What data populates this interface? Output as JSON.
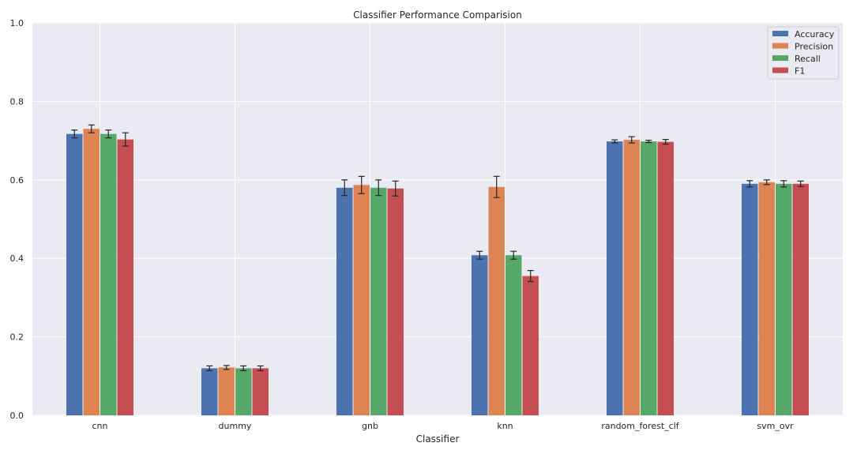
{
  "chart_data": {
    "type": "bar",
    "title": "Classifier Performance Comparision",
    "xlabel": "Classifier",
    "ylabel": "",
    "ylim": [
      0,
      1.0
    ],
    "yticks": [
      0.0,
      0.2,
      0.4,
      0.6,
      0.8,
      1.0
    ],
    "ytick_labels": [
      "0.0",
      "0.2",
      "0.4",
      "0.6",
      "0.8",
      "1.0"
    ],
    "grid": true,
    "legend_position": "top-right",
    "categories": [
      "cnn",
      "dummy",
      "gnb",
      "knn",
      "random_forest_clf",
      "svm_ovr"
    ],
    "series": [
      {
        "name": "Accuracy",
        "color": "#4c72b0",
        "values": [
          0.717,
          0.12,
          0.58,
          0.408,
          0.698,
          0.59
        ],
        "errors": [
          0.01,
          0.006,
          0.02,
          0.01,
          0.004,
          0.008
        ]
      },
      {
        "name": "Precision",
        "color": "#dd8452",
        "values": [
          0.73,
          0.122,
          0.587,
          0.582,
          0.702,
          0.594
        ],
        "errors": [
          0.01,
          0.005,
          0.022,
          0.027,
          0.008,
          0.006
        ]
      },
      {
        "name": "Recall",
        "color": "#55a868",
        "values": [
          0.717,
          0.12,
          0.58,
          0.408,
          0.698,
          0.59
        ],
        "errors": [
          0.01,
          0.006,
          0.02,
          0.01,
          0.003,
          0.008
        ]
      },
      {
        "name": "F1",
        "color": "#c44e52",
        "values": [
          0.703,
          0.12,
          0.578,
          0.355,
          0.697,
          0.59
        ],
        "errors": [
          0.017,
          0.006,
          0.019,
          0.014,
          0.006,
          0.007
        ]
      }
    ],
    "colors": {
      "plot_background": "#eaeaf2",
      "grid": "#ffffff",
      "error_bar": "#262626"
    }
  }
}
